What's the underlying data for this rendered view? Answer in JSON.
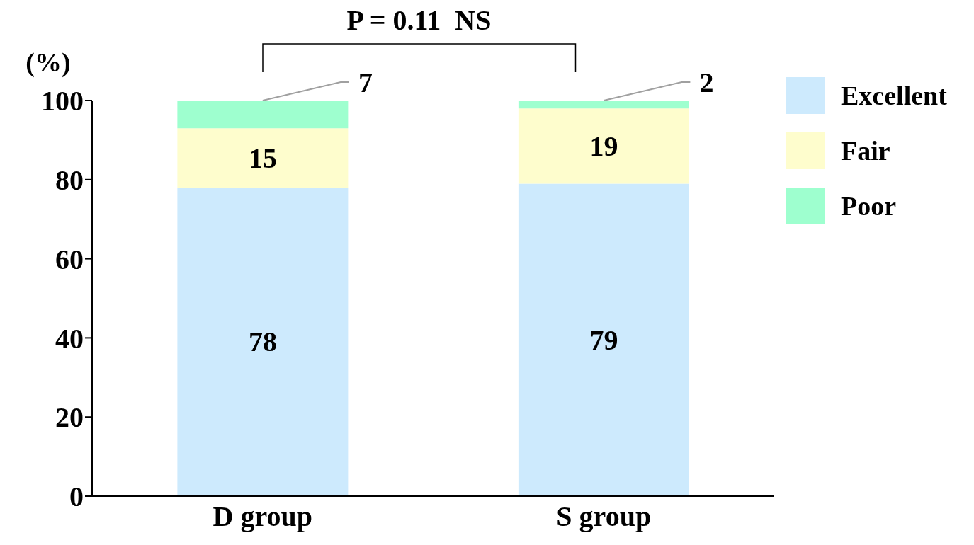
{
  "chart_data": {
    "type": "bar",
    "stacked": true,
    "ylabel": "(%)",
    "annotations": [
      "P = 0.11  NS"
    ],
    "categories": [
      "D group",
      "S group"
    ],
    "series": [
      {
        "name": "Excellent",
        "color": "#cdeafd",
        "values": [
          78,
          79
        ]
      },
      {
        "name": "Fair",
        "color": "#fefdcd",
        "values": [
          15,
          19
        ]
      },
      {
        "name": "Poor",
        "color": "#9effcf",
        "values": [
          7,
          2
        ]
      }
    ],
    "ylim": [
      0,
      100
    ],
    "yticks": [
      0,
      20,
      40,
      60,
      80,
      100
    ],
    "data_labels": true,
    "legend": "top right"
  }
}
